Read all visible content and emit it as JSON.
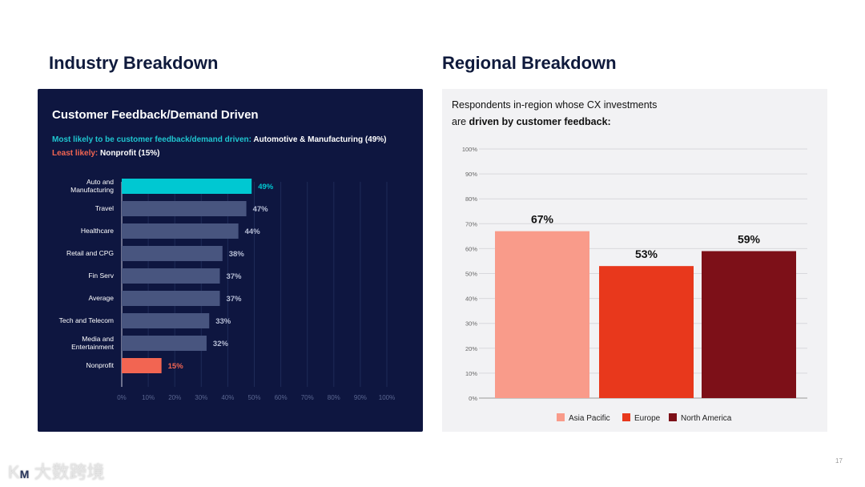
{
  "left": {
    "heading": "Industry Breakdown",
    "title": "Customer Feedback/Demand Driven",
    "most_label": "Most likely to be customer feedback/demand driven:",
    "most_value": "Automotive & Manufacturing (49%)",
    "least_label": "Least likely:",
    "least_value": "Nonprofit (15%)"
  },
  "right": {
    "heading": "Regional Breakdown",
    "subtitle_1": "Respondents in-region whose CX investments",
    "subtitle_2a": "are ",
    "subtitle_2b": "driven by customer feedback:"
  },
  "page_number": "17",
  "watermark": "大数跨境",
  "chart_data": [
    {
      "type": "bar",
      "orientation": "horizontal",
      "title": "Customer Feedback/Demand Driven",
      "categories": [
        [
          "Auto and",
          "Manufacturing"
        ],
        [
          "Travel"
        ],
        [
          "Healthcare"
        ],
        [
          "Retail and CPG"
        ],
        [
          "Fin Serv"
        ],
        [
          "Average"
        ],
        [
          "Tech and Telecom"
        ],
        [
          "Media and",
          "Entertainment"
        ],
        [
          "Nonprofit"
        ]
      ],
      "values": [
        49,
        47,
        44,
        38,
        37,
        37,
        33,
        32,
        15
      ],
      "labels": [
        "49%",
        "47%",
        "44%",
        "38%",
        "37%",
        "37%",
        "33%",
        "32%",
        "15%"
      ],
      "highlight": {
        "0": "#00c8d2",
        "8": "#f26552"
      },
      "default_color": "#48557f",
      "xticks": [
        "0%",
        "10%",
        "20%",
        "30%",
        "40%",
        "50%",
        "60%",
        "70%",
        "80%",
        "90%",
        "100%"
      ],
      "xlim": [
        0,
        100
      ]
    },
    {
      "type": "bar",
      "categories": [
        "Asia Pacific",
        "Europe",
        "North America"
      ],
      "values": [
        67,
        53,
        59
      ],
      "labels": [
        "67%",
        "53%",
        "59%"
      ],
      "colors": [
        "#f99b8a",
        "#e8381c",
        "#7d1018"
      ],
      "yticks": [
        "0%",
        "10%",
        "20%",
        "30%",
        "40%",
        "50%",
        "60%",
        "70%",
        "80%",
        "90%",
        "100%"
      ],
      "ylim": [
        0,
        100
      ],
      "legend": "bottom"
    }
  ]
}
